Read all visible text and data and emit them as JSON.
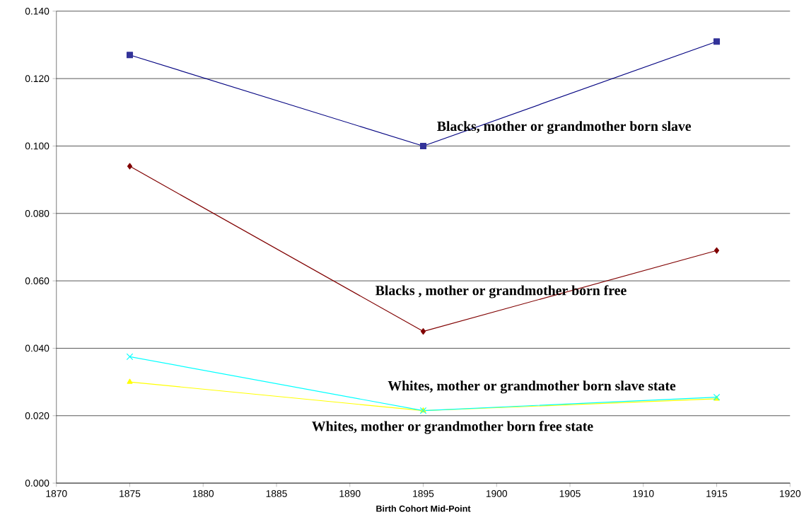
{
  "chart_data": {
    "type": "line",
    "xlabel": "Birth Cohort Mid-Point",
    "x": [
      1875,
      1895,
      1915
    ],
    "series": [
      {
        "name": "Blacks, mother  or grandmother  born slave",
        "color": "#000080",
        "marker": "square",
        "values": [
          0.127,
          0.1,
          0.131
        ]
      },
      {
        "name": "Blacks , mother or grandmother born free",
        "color": "#800000",
        "marker": "diamond",
        "values": [
          0.094,
          0.045,
          0.069
        ]
      },
      {
        "name": "Whites, mother or grandmother born slave state",
        "color": "#00ffff",
        "marker": "cross",
        "values": [
          0.0375,
          0.0215,
          0.0255
        ]
      },
      {
        "name": "Whites, mother or grandmother born free state",
        "color": "#ffff00",
        "marker": "triangle",
        "values": [
          0.03,
          0.0215,
          0.025
        ]
      }
    ],
    "xlim": [
      1870,
      1920
    ],
    "xticks": [
      1870,
      1875,
      1880,
      1885,
      1890,
      1895,
      1900,
      1905,
      1910,
      1915,
      1920
    ],
    "ylim": [
      0,
      0.14
    ],
    "yticks": [
      {
        "value": 0,
        "label": "0.000"
      },
      {
        "value": 0.02,
        "label": "0.020"
      },
      {
        "value": 0.04,
        "label": "0.040"
      },
      {
        "value": 0.06,
        "label": "0.060"
      },
      {
        "value": 0.08,
        "label": "0.080"
      },
      {
        "value": 0.1,
        "label": "0.100"
      },
      {
        "value": 0.12,
        "label": "0.120"
      },
      {
        "value": 0.14,
        "label": "0.140"
      }
    ],
    "grid": "y",
    "legend": false,
    "line_style": "solid"
  }
}
